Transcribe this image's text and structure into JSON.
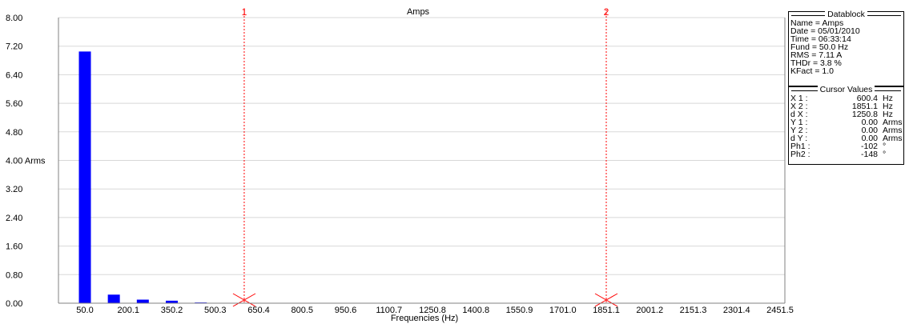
{
  "chart_data": {
    "type": "bar",
    "title": "Amps",
    "xlabel": "Frequencies (Hz)",
    "ylabel": "",
    "ylim": [
      0,
      8.0
    ],
    "yticks": [
      "0.00",
      "0.80",
      "1.60",
      "2.40",
      "3.20",
      "4.00 Arms",
      "4.80",
      "5.60",
      "6.40",
      "7.20",
      "8.00"
    ],
    "xticks": [
      "50.0",
      "200.1",
      "350.2",
      "500.3",
      "650.4",
      "800.5",
      "950.6",
      "1100.7",
      "1250.8",
      "1400.8",
      "1550.9",
      "1701.0",
      "1851.1",
      "2001.2",
      "2151.3",
      "2301.4",
      "2451.5"
    ],
    "xlim": [
      50.0,
      2451.5
    ],
    "series": [
      {
        "bars": [
          {
            "x": 50.0,
            "y": 7.05
          },
          {
            "x": 150.0,
            "y": 0.24
          },
          {
            "x": 250.1,
            "y": 0.1
          },
          {
            "x": 350.2,
            "y": 0.07
          },
          {
            "x": 450.3,
            "y": 0.02
          }
        ]
      }
    ],
    "cursors": [
      {
        "label": "1",
        "x": 600.4
      },
      {
        "label": "2",
        "x": 1851.1
      }
    ],
    "colors": {
      "bar": "#0000ff",
      "cursor": "#ff0000",
      "grid": "#d8d8d8"
    },
    "grid": true
  },
  "datablock": {
    "title": "Datablock",
    "rows": [
      {
        "k": "Name = Amps",
        "v": "",
        "u": ""
      },
      {
        "k": "Date  = 05/01/2010",
        "v": "",
        "u": ""
      },
      {
        "k": "Time  = 06:33:14",
        "v": "",
        "u": ""
      },
      {
        "k": "Fund  = 50.0   Hz",
        "v": "",
        "u": ""
      },
      {
        "k": "RMS  =  7.11 A",
        "v": "",
        "u": ""
      },
      {
        "k": "THDr =   3.8   %",
        "v": "",
        "u": ""
      },
      {
        "k": "KFact =   1.0",
        "v": "",
        "u": ""
      }
    ]
  },
  "cursor_values": {
    "title": "Cursor Values",
    "rows": [
      {
        "k": "X 1  :",
        "v": "600.4",
        "u": "Hz"
      },
      {
        "k": "X 2  :",
        "v": "1851.1",
        "u": "Hz"
      },
      {
        "k": "d X  :",
        "v": "1250.8",
        "u": "Hz"
      },
      {
        "k": "Y 1  :",
        "v": "0.00",
        "u": "Arms"
      },
      {
        "k": "Y 2  :",
        "v": "0.00",
        "u": "Arms"
      },
      {
        "k": "d Y  :",
        "v": "0.00",
        "u": "Arms"
      },
      {
        "k": "Ph1  :",
        "v": "-102",
        "u": "°"
      },
      {
        "k": "Ph2  :",
        "v": "-148",
        "u": "°"
      }
    ]
  }
}
